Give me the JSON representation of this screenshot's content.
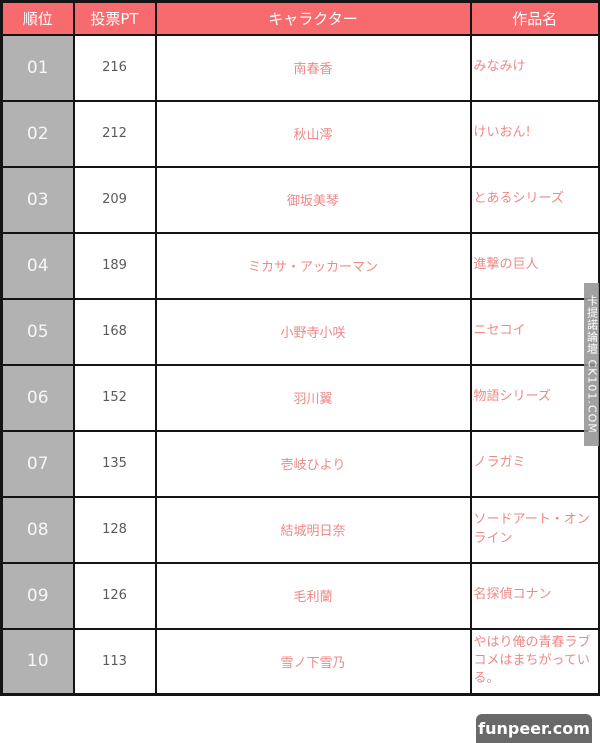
{
  "table": {
    "columns": [
      "順位",
      "投票PT",
      "キャラクター",
      "作品名"
    ],
    "rows": [
      {
        "rank": "01",
        "pt": "216",
        "character": "南春香",
        "work": "みなみけ"
      },
      {
        "rank": "02",
        "pt": "212",
        "character": "秋山澪",
        "work": "けいおん!"
      },
      {
        "rank": "03",
        "pt": "209",
        "character": "御坂美琴",
        "work": "とあるシリーズ"
      },
      {
        "rank": "04",
        "pt": "189",
        "character": "ミカサ・アッカーマン",
        "work": "進撃の巨人"
      },
      {
        "rank": "05",
        "pt": "168",
        "character": "小野寺小咲",
        "work": "ニセコイ"
      },
      {
        "rank": "06",
        "pt": "152",
        "character": "羽川翼",
        "work": "物語シリーズ"
      },
      {
        "rank": "07",
        "pt": "135",
        "character": "壱岐ひより",
        "work": "ノラガミ"
      },
      {
        "rank": "08",
        "pt": "128",
        "character": "結城明日奈",
        "work": "ソードアート・オンライン"
      },
      {
        "rank": "09",
        "pt": "126",
        "character": "毛利蘭",
        "work": "名探偵コナン"
      },
      {
        "rank": "10",
        "pt": "113",
        "character": "雪ノ下雪乃",
        "work": "やはり俺の青春ラブコメはまちがっている。"
      }
    ]
  },
  "watermarks": {
    "side_vertical": "卡提諾論壇 CK101.COM",
    "bottom_badge": "funpeer.com"
  },
  "colors": {
    "header_bg": "#f76b6e",
    "rank_cell_bg": "#b2b2b2",
    "accent_text": "#ef8888",
    "pt_text": "#595959",
    "border": "#141414"
  },
  "chart_data": {
    "type": "table",
    "title": "",
    "columns": [
      "順位",
      "投票PT",
      "キャラクター",
      "作品名"
    ],
    "categories": [
      "南春香",
      "秋山澪",
      "御坂美琴",
      "ミカサ・アッカーマン",
      "小野寺小咲",
      "羽川翼",
      "壱岐ひより",
      "結城明日奈",
      "毛利蘭",
      "雪ノ下雪乃"
    ],
    "series": [
      {
        "name": "投票PT",
        "values": [
          216,
          212,
          209,
          189,
          168,
          152,
          135,
          128,
          126,
          113
        ]
      }
    ],
    "works": [
      "みなみけ",
      "けいおん!",
      "とあるシリーズ",
      "進撃の巨人",
      "ニセコイ",
      "物語シリーズ",
      "ノラガミ",
      "ソードアート・オンライン",
      "名探偵コナン",
      "やはり俺の青春ラブコメはまちがっている。"
    ],
    "ranks": [
      "01",
      "02",
      "03",
      "04",
      "05",
      "06",
      "07",
      "08",
      "09",
      "10"
    ]
  }
}
